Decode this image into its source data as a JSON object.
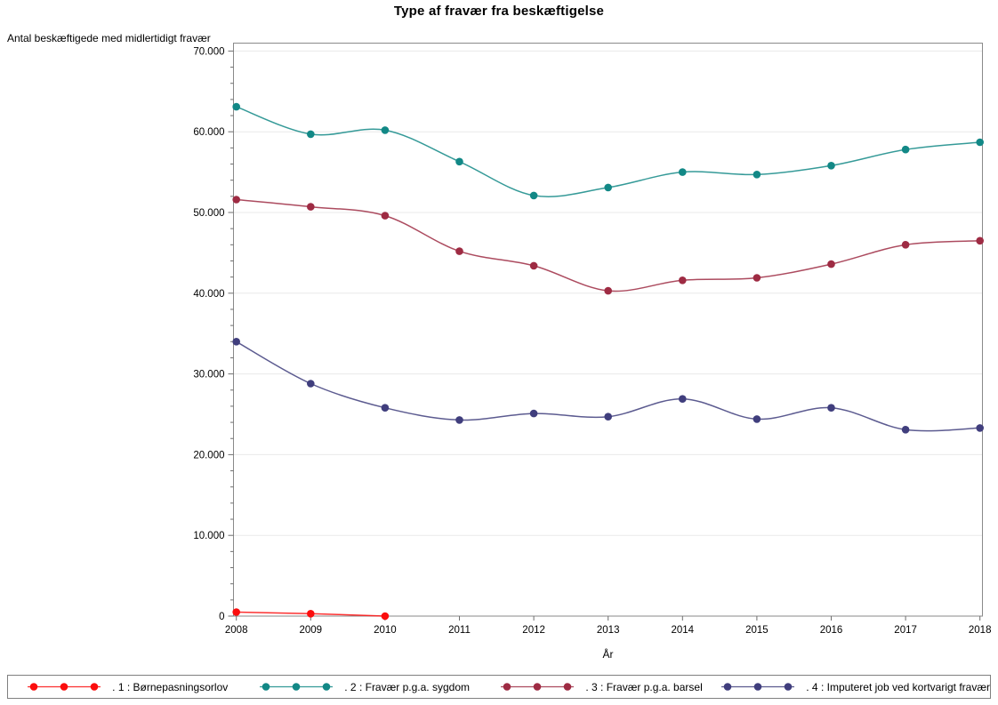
{
  "title": "Type af fravær fra beskæftigelse",
  "chart_data": {
    "type": "line",
    "title": "Type af fravær fra beskæftigelse",
    "xlabel": "År",
    "ylabel": "Antal beskæftigede med midlertidigt fravær",
    "x_ticks": [
      2008,
      2009,
      2010,
      2011,
      2012,
      2013,
      2014,
      2015,
      2016,
      2017,
      2018
    ],
    "xlim": [
      2008,
      2018
    ],
    "ylim": [
      0,
      70000
    ],
    "y_ticks": [
      {
        "label": "0",
        "value": 0
      },
      {
        "label": "10.000",
        "value": 10000
      },
      {
        "label": "20.000",
        "value": 20000
      },
      {
        "label": "30.000",
        "value": 30000
      },
      {
        "label": "40.000",
        "value": 40000
      },
      {
        "label": "50.000",
        "value": 50000
      },
      {
        "label": "60.000",
        "value": 60000
      },
      {
        "label": "70.000",
        "value": 70000
      }
    ],
    "y_minor_tick_step": 2000,
    "grid": true,
    "legend_position": "bottom",
    "series": [
      {
        "name": ". 1 : Børnepasningsorlov",
        "color": "#fb0d0d",
        "x": [
          2008,
          2009,
          2010
        ],
        "values": [
          500,
          300,
          0
        ]
      },
      {
        "name": ". 2 : Fravær p.g.a. sygdom",
        "color": "#128886",
        "x": [
          2008,
          2009,
          2010,
          2011,
          2012,
          2013,
          2014,
          2015,
          2016,
          2017,
          2018
        ],
        "values": [
          63100,
          59700,
          60200,
          56300,
          52100,
          53100,
          55000,
          54700,
          55800,
          57800,
          58700
        ]
      },
      {
        "name": ". 3 : Fravær p.g.a. barsel",
        "color": "#9e2b43",
        "x": [
          2008,
          2009,
          2010,
          2011,
          2012,
          2013,
          2014,
          2015,
          2016,
          2017,
          2018
        ],
        "values": [
          51600,
          50700,
          49600,
          45200,
          43400,
          40300,
          41600,
          41900,
          43600,
          46000,
          46500
        ]
      },
      {
        "name": ". 4 : Imputeret job ved kortvarigt fravær",
        "color": "#403e7d",
        "x": [
          2008,
          2009,
          2010,
          2011,
          2012,
          2013,
          2014,
          2015,
          2016,
          2017,
          2018
        ],
        "values": [
          34000,
          28800,
          25800,
          24300,
          25100,
          24700,
          26900,
          24400,
          25800,
          23100,
          23300
        ]
      }
    ]
  },
  "style_colors": {
    "grid": "#e9e9e9",
    "axis": "#8a8a8a",
    "tick": "#6f6f6f",
    "legend_border": "#7f7f7f"
  }
}
